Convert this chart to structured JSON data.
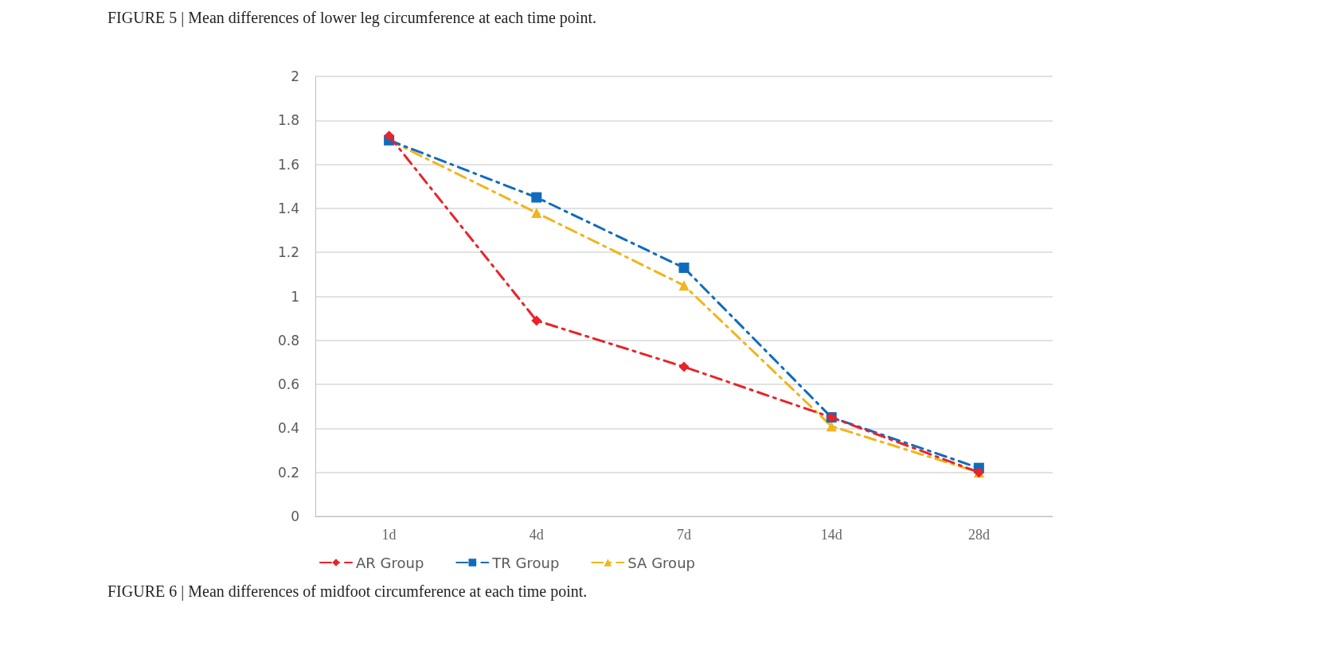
{
  "chart_data": {
    "type": "line",
    "categories": [
      "1d",
      "4d",
      "7d",
      "14d",
      "28d"
    ],
    "series": [
      {
        "name": "AR Group",
        "color": "#e8232a",
        "marker": "diamond",
        "values": [
          1.73,
          0.89,
          0.68,
          0.45,
          0.2
        ]
      },
      {
        "name": "TR Group",
        "color": "#0f6cbd",
        "marker": "square",
        "values": [
          1.71,
          1.45,
          1.13,
          0.45,
          0.22
        ]
      },
      {
        "name": "SA Group",
        "color": "#f0b51c",
        "marker": "triangle",
        "values": [
          1.71,
          1.38,
          1.05,
          0.41,
          0.2
        ]
      }
    ],
    "ylim": [
      0,
      2
    ],
    "yticks": [
      0,
      0.2,
      0.4,
      0.6,
      0.8,
      1,
      1.2,
      1.4,
      1.6,
      1.8,
      2
    ],
    "grid": "y",
    "legend": "bottom",
    "line_style": "dashed",
    "annotations": [
      "FIGURE 5 | Mean differences of lower leg circumference at each time point.",
      "FIGURE 6 | Mean differences of midfoot circumference at each time point."
    ]
  }
}
